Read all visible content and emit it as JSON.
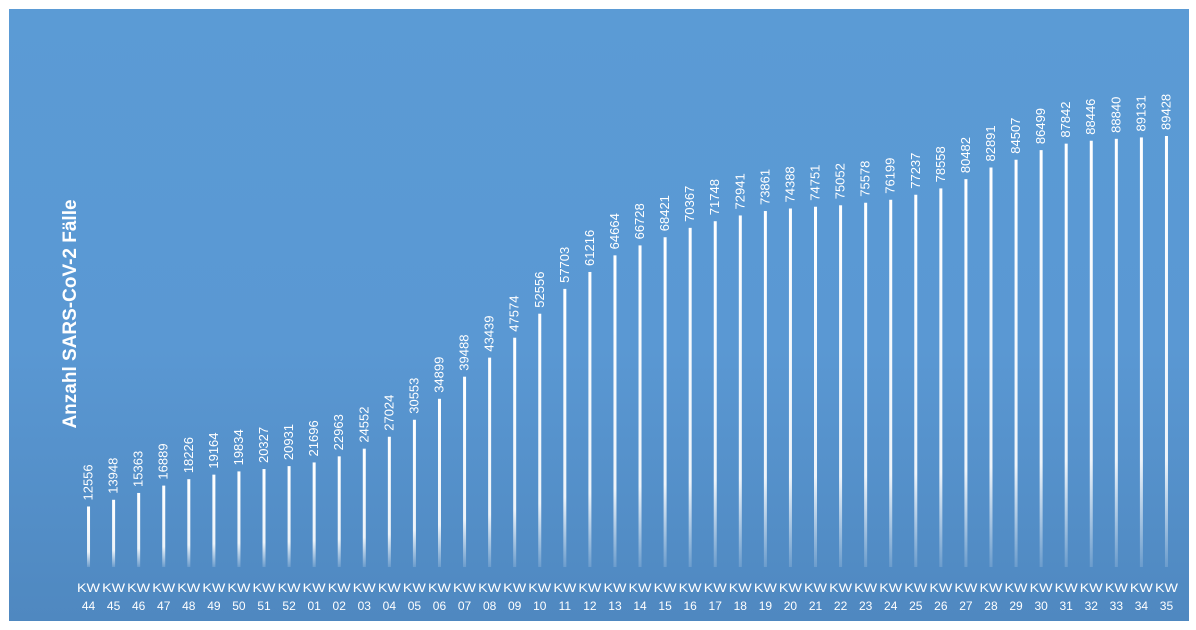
{
  "chart_data": {
    "type": "bar",
    "ylabel": "Anzahl SARS-CoV-2 Fälle",
    "categories": [
      "KW 44",
      "KW 45",
      "KW 46",
      "KW 47",
      "KW 48",
      "KW 49",
      "KW 50",
      "KW 51",
      "KW 52",
      "KW 01",
      "KW 02",
      "KW 03",
      "KW 04",
      "KW 05",
      "KW 06",
      "KW 07",
      "KW 08",
      "KW 09",
      "KW 10",
      "KW 11",
      "KW 12",
      "KW 13",
      "KW 14",
      "KW 15",
      "KW 16",
      "KW 17",
      "KW 18",
      "KW 19",
      "KW 20",
      "KW 21",
      "KW 22",
      "KW 23",
      "KW 24",
      "KW 25",
      "KW 26",
      "KW 27",
      "KW 28",
      "KW 29",
      "KW 30",
      "KW 31",
      "KW 32",
      "KW 33",
      "KW 34",
      "KW 35"
    ],
    "values": [
      12556,
      13948,
      15363,
      16889,
      18226,
      19164,
      19834,
      20327,
      20931,
      21696,
      22963,
      24552,
      27024,
      30553,
      34899,
      39488,
      43439,
      47574,
      52556,
      57703,
      61216,
      64664,
      66728,
      68421,
      70367,
      71748,
      72941,
      73861,
      74388,
      74751,
      75052,
      75578,
      76199,
      77237,
      78558,
      80482,
      82891,
      84507,
      86499,
      87842,
      88446,
      88840,
      89131,
      89428
    ],
    "data_labels": true,
    "grid": false,
    "colors": {
      "background": "#5b9bd5",
      "bar": "#ffffff",
      "text": "#ffffff"
    }
  }
}
